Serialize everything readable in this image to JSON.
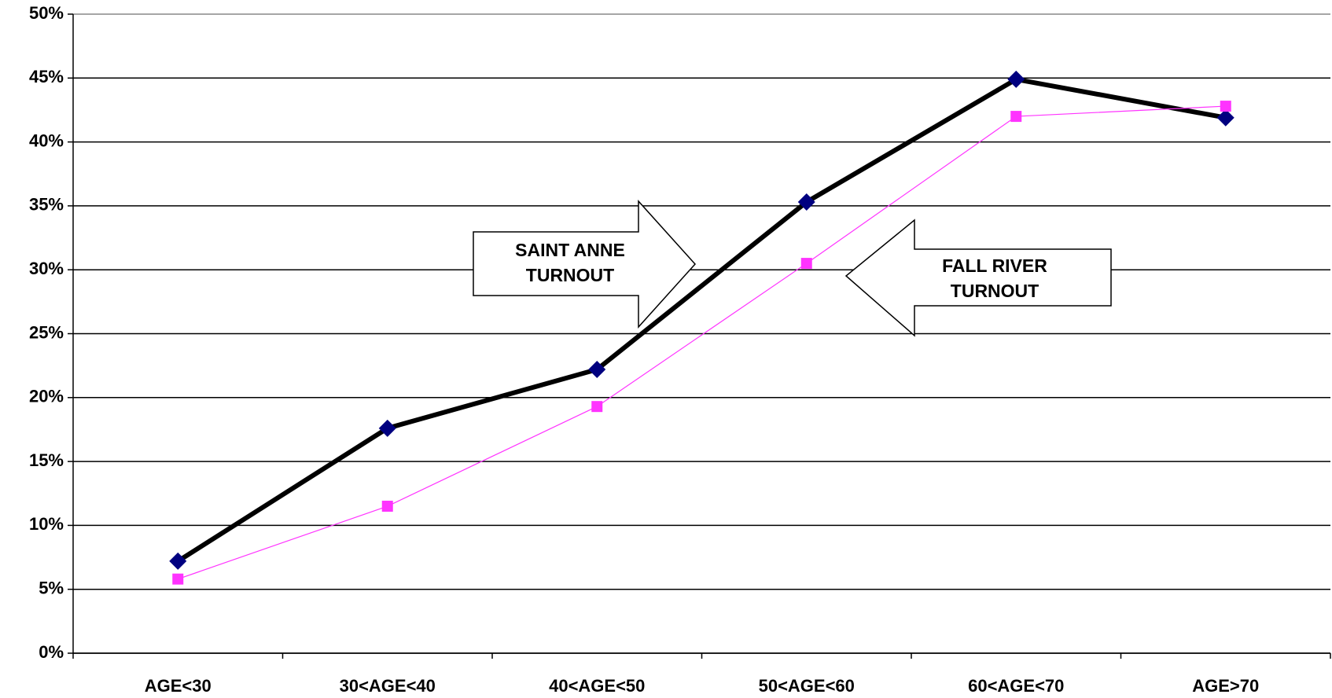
{
  "chart_data": {
    "type": "line",
    "categories": [
      "AGE<30",
      "30<AGE<40",
      "40<AGE<50",
      "50<AGE<60",
      "60<AGE<70",
      "AGE>70"
    ],
    "series": [
      {
        "name": "SAINT ANNE TURNOUT",
        "color": "#000000",
        "marker_color": "#000080",
        "marker": "diamond",
        "line_width": 6,
        "values": [
          7.2,
          17.6,
          22.2,
          35.3,
          44.9,
          41.9
        ]
      },
      {
        "name": "FALL RIVER TURNOUT",
        "color": "#ff33ff",
        "marker_color": "#ff33ff",
        "marker": "square",
        "line_width": 1.2,
        "values": [
          5.8,
          11.5,
          19.3,
          30.5,
          42.0,
          42.8
        ]
      }
    ],
    "ylim": [
      0,
      50
    ],
    "yticks": [
      {
        "value": 0,
        "label": "0%"
      },
      {
        "value": 5,
        "label": "5%"
      },
      {
        "value": 10,
        "label": "10%"
      },
      {
        "value": 15,
        "label": "15%"
      },
      {
        "value": 20,
        "label": "20%"
      },
      {
        "value": 25,
        "label": "25%"
      },
      {
        "value": 30,
        "label": "30%"
      },
      {
        "value": 35,
        "label": "35%"
      },
      {
        "value": 40,
        "label": "40%"
      },
      {
        "value": 45,
        "label": "45%"
      },
      {
        "value": 50,
        "label": "50%"
      }
    ],
    "grid": true
  }
}
